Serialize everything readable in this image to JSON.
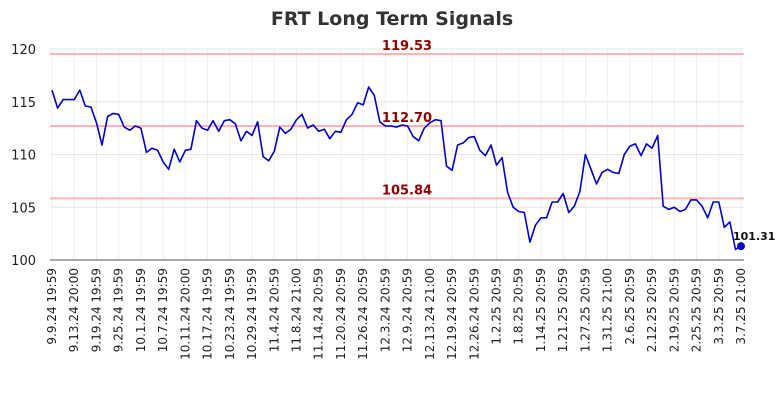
{
  "chart_data": {
    "type": "line",
    "title": "FRT Long Term Signals",
    "xlabel": "",
    "ylabel": "",
    "ylim": [
      100,
      120
    ],
    "yticks": [
      100,
      105,
      110,
      115,
      120
    ],
    "grid": true,
    "x_tick_labels": [
      "9.9.24 19:59",
      "9.13.24 20:00",
      "9.19.24 19:59",
      "9.25.24 19:59",
      "10.1.24 19:59",
      "10.7.24 19:59",
      "10.11.24 20:00",
      "10.17.24 19:59",
      "10.23.24 19:59",
      "10.29.24 19:59",
      "11.4.24 20:59",
      "11.8.24 21:00",
      "11.14.24 20:59",
      "11.20.24 20:59",
      "11.26.24 20:59",
      "12.3.24 20:59",
      "12.9.24 20:59",
      "12.13.24 21:00",
      "12.19.24 20:59",
      "12.26.24 20:59",
      "1.2.25 20:59",
      "1.8.25 20:59",
      "1.14.25 20:59",
      "1.21.25 20:59",
      "1.27.25 20:59",
      "1.31.25 21:00",
      "2.6.25 20:59",
      "2.12.25 20:59",
      "2.19.25 20:59",
      "2.25.25 20:59",
      "3.3.25 20:59",
      "3.7.25 21:00"
    ],
    "levels": [
      {
        "value": 119.53,
        "label": "119.53",
        "color": "#ffb3b3"
      },
      {
        "value": 112.7,
        "label": "112.70",
        "color": "#ffb3b3"
      },
      {
        "value": 105.84,
        "label": "105.84",
        "color": "#ffb3b3"
      }
    ],
    "line_color": "#0000cc",
    "last_value": 101.31,
    "last_label": "101.31",
    "series": [
      {
        "values": [
          116.1,
          114.4,
          115.2,
          115.2,
          115.2,
          116.1,
          114.6,
          114.5,
          113.0,
          110.9,
          113.6,
          113.9,
          113.8,
          112.6,
          112.3,
          112.7,
          112.5,
          110.2,
          110.6,
          110.4,
          109.3,
          108.6,
          110.5,
          109.3,
          110.4,
          110.5,
          113.2,
          112.5,
          112.3,
          113.2,
          112.2,
          113.2,
          113.3,
          112.9,
          111.3,
          112.2,
          111.8,
          113.1,
          109.8,
          109.4,
          110.3,
          112.6,
          112.0,
          112.4,
          113.3,
          113.8,
          112.5,
          112.8,
          112.2,
          112.4,
          111.5,
          112.2,
          112.1,
          113.3,
          113.8,
          114.9,
          114.7,
          116.4,
          115.6,
          113.1,
          112.7,
          112.7,
          112.6,
          112.8,
          112.7,
          111.7,
          111.3,
          112.5,
          113.0,
          113.3,
          113.2,
          108.9,
          108.5,
          110.9,
          111.1,
          111.6,
          111.7,
          110.4,
          109.9,
          110.9,
          109.0,
          109.7,
          106.4,
          105.0,
          104.6,
          104.5,
          101.7,
          103.3,
          104.0,
          104.0,
          105.5,
          105.5,
          106.3,
          104.5,
          105.1,
          106.5,
          110.0,
          108.6,
          107.2,
          108.3,
          108.6,
          108.3,
          108.2,
          110.0,
          110.8,
          111.0,
          109.9,
          111.0,
          110.6,
          111.8,
          105.1,
          104.8,
          105.0,
          104.6,
          104.8,
          105.7,
          105.7,
          105.1,
          104.0,
          105.5,
          105.5,
          103.1,
          103.6,
          101.0,
          101.31
        ]
      }
    ]
  }
}
